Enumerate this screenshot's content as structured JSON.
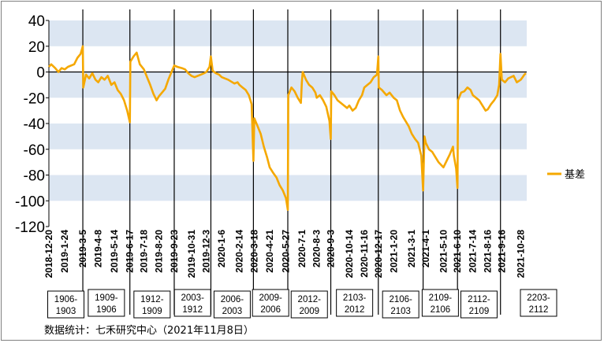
{
  "source_note": "数据统计：七禾研究中心（2021年11月8日）",
  "chart_data": {
    "type": "line",
    "title": "",
    "xlabel": "",
    "ylabel": "",
    "ylim": [
      -120,
      40
    ],
    "yticks": [
      40,
      20,
      0,
      -20,
      -40,
      -60,
      -80,
      -100,
      -120
    ],
    "grid": "alternating horizontal bands",
    "legend_position": "right",
    "series": [
      {
        "name": "基差",
        "color": "#F5A800",
        "points": [
          [
            "2018-12-20",
            4
          ],
          [
            "2018-12-25",
            6
          ],
          [
            "2019-1-3",
            3
          ],
          [
            "2019-1-10",
            0
          ],
          [
            "2019-1-17",
            3
          ],
          [
            "2019-1-24",
            2
          ],
          [
            "2019-1-31",
            4
          ],
          [
            "2019-2-14",
            6
          ],
          [
            "2019-2-21",
            11
          ],
          [
            "2019-2-28",
            14
          ],
          [
            "2019-3-5",
            20
          ],
          [
            "2019-3-6",
            -12
          ],
          [
            "2019-3-12",
            -2
          ],
          [
            "2019-3-19",
            -5
          ],
          [
            "2019-3-26",
            -1
          ],
          [
            "2019-4-2",
            -6
          ],
          [
            "2019-4-8",
            -8
          ],
          [
            "2019-4-15",
            -4
          ],
          [
            "2019-4-22",
            -6
          ],
          [
            "2019-4-29",
            -3
          ],
          [
            "2019-5-7",
            -10
          ],
          [
            "2019-5-14",
            -8
          ],
          [
            "2019-5-21",
            -14
          ],
          [
            "2019-5-28",
            -17
          ],
          [
            "2019-6-4",
            -22
          ],
          [
            "2019-6-11",
            -30
          ],
          [
            "2019-6-17",
            -39
          ],
          [
            "2019-6-18",
            8
          ],
          [
            "2019-6-25",
            12
          ],
          [
            "2019-7-2",
            15
          ],
          [
            "2019-7-9",
            6
          ],
          [
            "2019-7-18",
            2
          ],
          [
            "2019-7-25",
            -4
          ],
          [
            "2019-8-1",
            -10
          ],
          [
            "2019-8-8",
            -17
          ],
          [
            "2019-8-15",
            -22
          ],
          [
            "2019-8-20",
            -19
          ],
          [
            "2019-8-27",
            -16
          ],
          [
            "2019-9-3",
            -13
          ],
          [
            "2019-9-10",
            -6
          ],
          [
            "2019-9-17",
            0
          ],
          [
            "2019-9-23",
            5
          ],
          [
            "2019-9-30",
            4
          ],
          [
            "2019-10-10",
            3
          ],
          [
            "2019-10-17",
            2
          ],
          [
            "2019-10-24",
            -1
          ],
          [
            "2019-10-31",
            -3
          ],
          [
            "2019-11-7",
            -4
          ],
          [
            "2019-11-14",
            -3
          ],
          [
            "2019-11-21",
            -2
          ],
          [
            "2019-11-28",
            -1
          ],
          [
            "2019-12-3",
            0
          ],
          [
            "2019-12-10",
            4
          ],
          [
            "2019-12-13",
            12
          ],
          [
            "2019-12-17",
            1
          ],
          [
            "2019-12-24",
            -1
          ],
          [
            "2019-12-31",
            -2
          ],
          [
            "2020-1-6",
            -4
          ],
          [
            "2020-1-13",
            -5
          ],
          [
            "2020-1-20",
            -6
          ],
          [
            "2020-2-3",
            -9
          ],
          [
            "2020-2-10",
            -8
          ],
          [
            "2020-2-14",
            -10
          ],
          [
            "2020-2-21",
            -12
          ],
          [
            "2020-2-28",
            -14
          ],
          [
            "2020-3-6",
            -18
          ],
          [
            "2020-3-12",
            -25
          ],
          [
            "2020-3-16",
            -69
          ],
          [
            "2020-3-18",
            -36
          ],
          [
            "2020-3-25",
            -42
          ],
          [
            "2020-4-1",
            -48
          ],
          [
            "2020-4-8",
            -58
          ],
          [
            "2020-4-15",
            -66
          ],
          [
            "2020-4-21",
            -74
          ],
          [
            "2020-4-28",
            -78
          ],
          [
            "2020-5-6",
            -82
          ],
          [
            "2020-5-13",
            -88
          ],
          [
            "2020-5-20",
            -92
          ],
          [
            "2020-5-27",
            -98
          ],
          [
            "2020-5-31",
            -107
          ],
          [
            "2020-6-1",
            -18
          ],
          [
            "2020-6-8",
            -12
          ],
          [
            "2020-6-15",
            -15
          ],
          [
            "2020-6-22",
            -20
          ],
          [
            "2020-6-29",
            -24
          ],
          [
            "2020-7-1",
            -8
          ],
          [
            "2020-7-3",
            0
          ],
          [
            "2020-7-10",
            -6
          ],
          [
            "2020-7-17",
            -10
          ],
          [
            "2020-7-24",
            -12
          ],
          [
            "2020-7-31",
            -16
          ],
          [
            "2020-8-3",
            -20
          ],
          [
            "2020-8-10",
            -18
          ],
          [
            "2020-8-17",
            -22
          ],
          [
            "2020-8-24",
            -27
          ],
          [
            "2020-8-31",
            -38
          ],
          [
            "2020-9-3",
            -52
          ],
          [
            "2020-9-4",
            -15
          ],
          [
            "2020-9-11",
            -18
          ],
          [
            "2020-9-18",
            -22
          ],
          [
            "2020-9-25",
            -24
          ],
          [
            "2020-10-9",
            -28
          ],
          [
            "2020-10-14",
            -26
          ],
          [
            "2020-10-21",
            -30
          ],
          [
            "2020-10-28",
            -28
          ],
          [
            "2020-11-4",
            -22
          ],
          [
            "2020-11-11",
            -18
          ],
          [
            "2020-11-16",
            -12
          ],
          [
            "2020-11-23",
            -10
          ],
          [
            "2020-11-30",
            -8
          ],
          [
            "2020-12-7",
            -4
          ],
          [
            "2020-12-14",
            -2
          ],
          [
            "2020-12-17",
            12
          ],
          [
            "2020-12-18",
            -12
          ],
          [
            "2020-12-25",
            -14
          ],
          [
            "2021-1-4",
            -18
          ],
          [
            "2021-1-11",
            -16
          ],
          [
            "2021-1-20",
            -20
          ],
          [
            "2021-1-27",
            -22
          ],
          [
            "2021-2-3",
            -30
          ],
          [
            "2021-2-10",
            -35
          ],
          [
            "2021-2-22",
            -42
          ],
          [
            "2021-3-1",
            -48
          ],
          [
            "2021-3-8",
            -52
          ],
          [
            "2021-3-15",
            -55
          ],
          [
            "2021-3-22",
            -65
          ],
          [
            "2021-3-26",
            -92
          ],
          [
            "2021-3-29",
            -50
          ],
          [
            "2021-4-1",
            -55
          ],
          [
            "2021-4-8",
            -60
          ],
          [
            "2021-4-15",
            -62
          ],
          [
            "2021-4-22",
            -66
          ],
          [
            "2021-4-29",
            -70
          ],
          [
            "2021-5-10",
            -74
          ],
          [
            "2021-5-17",
            -69
          ],
          [
            "2021-5-24",
            -64
          ],
          [
            "2021-5-31",
            -58
          ],
          [
            "2021-6-2",
            -65
          ],
          [
            "2021-6-7",
            -75
          ],
          [
            "2021-6-10",
            -90
          ],
          [
            "2021-6-11",
            -22
          ],
          [
            "2021-6-18",
            -16
          ],
          [
            "2021-6-25",
            -15
          ],
          [
            "2021-7-2",
            -12
          ],
          [
            "2021-7-9",
            -14
          ],
          [
            "2021-7-14",
            -18
          ],
          [
            "2021-7-21",
            -20
          ],
          [
            "2021-7-28",
            -22
          ],
          [
            "2021-8-4",
            -26
          ],
          [
            "2021-8-11",
            -30
          ],
          [
            "2021-8-16",
            -29
          ],
          [
            "2021-8-23",
            -25
          ],
          [
            "2021-8-30",
            -22
          ],
          [
            "2021-9-6",
            -18
          ],
          [
            "2021-9-10",
            -10
          ],
          [
            "2021-9-13",
            14
          ],
          [
            "2021-9-16",
            -6
          ],
          [
            "2021-9-23",
            -8
          ],
          [
            "2021-9-30",
            -5
          ],
          [
            "2021-10-12",
            -3
          ],
          [
            "2021-10-19",
            -8
          ],
          [
            "2021-10-28",
            -6
          ],
          [
            "2021-11-1",
            -4
          ],
          [
            "2021-11-5",
            -2
          ],
          [
            "2021-11-8",
            -1
          ]
        ]
      }
    ],
    "x_tick_labels": [
      "2018-12-20",
      "2019-1-24",
      "2019-3-5",
      "2019-4-8",
      "2019-5-14",
      "2019-6-17",
      "2019-7-18",
      "2019-8-20",
      "2019-9-23",
      "2019-10-31",
      "2019-12-3",
      "2020-1-6",
      "2020-2-14",
      "2020-3-18",
      "2020-4-21",
      "2020-5-27",
      "2020-7-1",
      "2020-8-3",
      "2020-9-3",
      "2020-10-14",
      "2020-11-16",
      "2020-12-17",
      "2021-1-20",
      "2021-3-1",
      "2021-4-1",
      "2021-5-10",
      "2021-6-10",
      "2021-7-14",
      "2021-8-16",
      "2021-9-16",
      "2021-10-28"
    ],
    "x_range": [
      "2018-12-20",
      "2021-11-10"
    ],
    "contract_switch_dates": [
      "2019-3-5",
      "2019-6-17",
      "2019-9-23",
      "2019-12-13",
      "2020-3-16",
      "2020-5-31",
      "2020-9-3",
      "2020-12-17",
      "2021-3-26",
      "2021-6-10",
      "2021-9-13"
    ],
    "contract_periods": [
      {
        "label": [
          "1906-",
          "1903"
        ],
        "start": "2018-12-20",
        "end": "2019-3-5"
      },
      {
        "label": [
          "1909-",
          "1906"
        ],
        "start": "2019-3-5",
        "end": "2019-6-17"
      },
      {
        "label": [
          "1912-",
          "1909"
        ],
        "start": "2019-6-17",
        "end": "2019-9-23"
      },
      {
        "label": [
          "2003-",
          "1912"
        ],
        "start": "2019-9-23",
        "end": "2019-12-13"
      },
      {
        "label": [
          "2006-",
          "2003"
        ],
        "start": "2019-12-13",
        "end": "2020-3-16"
      },
      {
        "label": [
          "2009-",
          "2006"
        ],
        "start": "2020-3-16",
        "end": "2020-5-31"
      },
      {
        "label": [
          "2012-",
          "2009"
        ],
        "start": "2020-5-31",
        "end": "2020-9-3"
      },
      {
        "label": [
          "2103-",
          "2012"
        ],
        "start": "2020-9-3",
        "end": "2020-12-17"
      },
      {
        "label": [
          "2106-",
          "2103"
        ],
        "start": "2020-12-17",
        "end": "2021-3-26"
      },
      {
        "label": [
          "2109-",
          "2106"
        ],
        "start": "2021-3-26",
        "end": "2021-6-10"
      },
      {
        "label": [
          "2112-",
          "2109"
        ],
        "start": "2021-6-10",
        "end": "2021-9-13"
      },
      {
        "label": [
          "2203-",
          "2112"
        ],
        "start": "2021-9-13",
        "end": "2021-11-10"
      }
    ]
  }
}
